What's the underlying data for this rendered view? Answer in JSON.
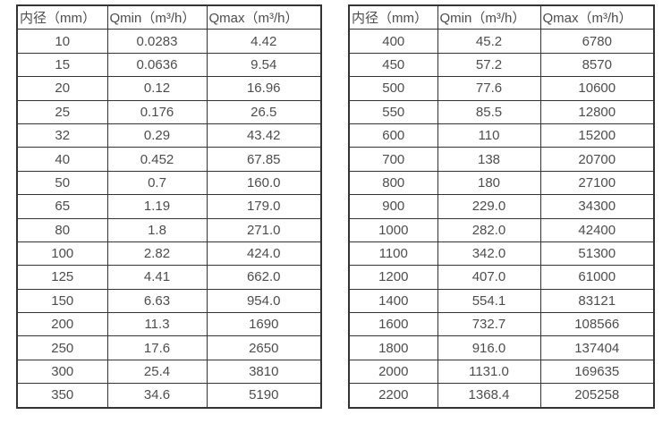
{
  "colors": {
    "border": "#333333",
    "text": "#4d4d4d",
    "background": "#ffffff"
  },
  "tables": [
    {
      "name": "flow-spec-table-left",
      "headers": [
        "内径（mm）",
        "Qmin（m³/h）",
        "Qmax（m³/h）"
      ],
      "rows": [
        [
          "10",
          "0.0283",
          "4.42"
        ],
        [
          "15",
          "0.0636",
          "9.54"
        ],
        [
          "20",
          "0.12",
          "16.96"
        ],
        [
          "25",
          "0.176",
          "26.5"
        ],
        [
          "32",
          "0.29",
          "43.42"
        ],
        [
          "40",
          "0.452",
          "67.85"
        ],
        [
          "50",
          "0.7",
          "160.0"
        ],
        [
          "65",
          "1.19",
          "179.0"
        ],
        [
          "80",
          "1.8",
          "271.0"
        ],
        [
          "100",
          "2.82",
          "424.0"
        ],
        [
          "125",
          "4.41",
          "662.0"
        ],
        [
          "150",
          "6.63",
          "954.0"
        ],
        [
          "200",
          "11.3",
          "1690"
        ],
        [
          "250",
          "17.6",
          "2650"
        ],
        [
          "300",
          "25.4",
          "3810"
        ],
        [
          "350",
          "34.6",
          "5190"
        ]
      ]
    },
    {
      "name": "flow-spec-table-right",
      "headers": [
        "内径（mm）",
        "Qmin（m³/h）",
        "Qmax（m³/h）"
      ],
      "rows": [
        [
          "400",
          "45.2",
          "6780"
        ],
        [
          "450",
          "57.2",
          "8570"
        ],
        [
          "500",
          "77.6",
          "10600"
        ],
        [
          "550",
          "85.5",
          "12800"
        ],
        [
          "600",
          "110",
          "15200"
        ],
        [
          "700",
          "138",
          "20700"
        ],
        [
          "800",
          "180",
          "27100"
        ],
        [
          "900",
          "229.0",
          "34300"
        ],
        [
          "1000",
          "282.0",
          "42400"
        ],
        [
          "1100",
          "342.0",
          "51300"
        ],
        [
          "1200",
          "407.0",
          "61000"
        ],
        [
          "1400",
          "554.1",
          "83121"
        ],
        [
          "1600",
          "732.7",
          "108566"
        ],
        [
          "1800",
          "916.0",
          "137404"
        ],
        [
          "2000",
          "1131.0",
          "169635"
        ],
        [
          "2200",
          "1368.4",
          "205258"
        ]
      ]
    }
  ]
}
